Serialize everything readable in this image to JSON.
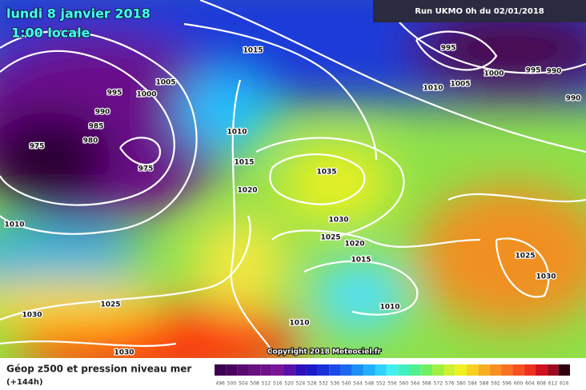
{
  "header": {
    "title": "lundi 8 janvier 2018",
    "subtitle": "1:00 locale",
    "run": "Run UKMO 0h du 02/01/2018"
  },
  "isobar_labels": [
    "995",
    "1000",
    "1005",
    "990",
    "985",
    "980",
    "975",
    "975",
    "1015",
    "1010",
    "1015",
    "1020",
    "1010",
    "1035",
    "1030",
    "1025",
    "1020",
    "1015",
    "1010",
    "1010",
    "1025",
    "1030",
    "1030",
    "995",
    "1000",
    "995",
    "990",
    "990",
    "1010",
    "1005",
    "1025",
    "1030"
  ],
  "copyright": "Copyright 2018 Meteociel.fr",
  "legend": {
    "title": "Géop z500 et pression niveau mer",
    "lead": "(+144h)",
    "scale": [
      "496",
      "500",
      "504",
      "508",
      "512",
      "516",
      "520",
      "524",
      "528",
      "532",
      "536",
      "540",
      "544",
      "548",
      "552",
      "556",
      "560",
      "564",
      "568",
      "572",
      "576",
      "580",
      "584",
      "588",
      "592",
      "596",
      "600",
      "604",
      "608",
      "612",
      "616"
    ]
  }
}
